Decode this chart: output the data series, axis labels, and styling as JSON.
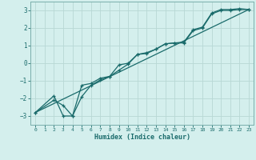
{
  "xlabel": "Humidex (Indice chaleur)",
  "bg_color": "#d4efed",
  "grid_color": "#b8d8d5",
  "line_color": "#1a6b6b",
  "xlim": [
    -0.5,
    23.5
  ],
  "ylim": [
    -3.5,
    3.5
  ],
  "yticks": [
    -3,
    -2,
    -1,
    0,
    1,
    2,
    3
  ],
  "xticks": [
    0,
    1,
    2,
    3,
    4,
    5,
    6,
    7,
    8,
    9,
    10,
    11,
    12,
    13,
    14,
    15,
    16,
    17,
    18,
    19,
    20,
    21,
    22,
    23
  ],
  "line1_x": [
    0,
    2,
    3,
    4,
    5,
    6,
    7,
    8,
    9,
    10,
    11,
    12,
    13,
    14,
    15,
    16,
    17,
    18,
    19,
    20,
    21,
    22,
    23
  ],
  "line1_y": [
    -2.8,
    -1.85,
    -3.0,
    -3.0,
    -1.25,
    -1.15,
    -0.85,
    -0.75,
    -0.1,
    0.0,
    0.5,
    0.6,
    0.8,
    1.1,
    1.15,
    1.2,
    1.9,
    2.05,
    2.85,
    3.05,
    3.05,
    3.1,
    3.05
  ],
  "line2_x": [
    0,
    2,
    3,
    4,
    5,
    6,
    7,
    8,
    9,
    10,
    11,
    12,
    13,
    14,
    15,
    16,
    17,
    18,
    19,
    20,
    21,
    22,
    23
  ],
  "line2_y": [
    -2.8,
    -2.1,
    -2.4,
    -3.0,
    -1.9,
    -1.25,
    -0.95,
    -0.75,
    -0.4,
    -0.05,
    0.5,
    0.55,
    0.8,
    1.1,
    1.15,
    1.15,
    1.85,
    2.0,
    2.8,
    3.0,
    3.0,
    3.05,
    3.05
  ],
  "line3_x": [
    0,
    23
  ],
  "line3_y": [
    -2.8,
    3.05
  ]
}
